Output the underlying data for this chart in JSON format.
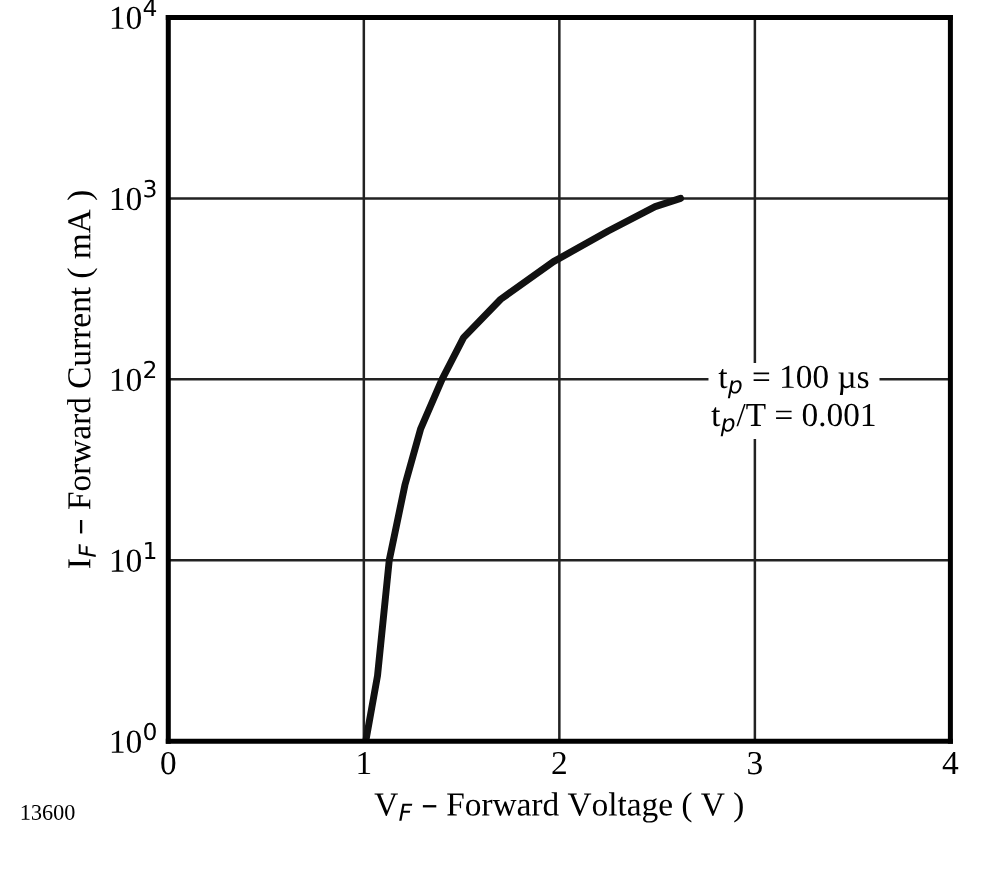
{
  "chart_data": {
    "type": "line",
    "xlabel": "V$_{F}$ – Forward Voltage ( V )",
    "ylabel": "I$_{F}$ – Forward Current ( mA )",
    "x": [
      1.01,
      1.07,
      1.13,
      1.21,
      1.29,
      1.4,
      1.51,
      1.7,
      1.97,
      2.25,
      2.49,
      2.62
    ],
    "series": [
      {
        "color": "#111111",
        "values": [
          1,
          2.3,
          10,
          26,
          53,
          100,
          170,
          277,
          447,
          660,
          900,
          1000
        ]
      }
    ],
    "log": "y",
    "xlim": [
      0,
      4
    ],
    "xticks": [
      0,
      1,
      2,
      3,
      4
    ],
    "ylim": [
      1,
      10000
    ],
    "yticks": [
      {
        "value": 1,
        "label": "10$^{0}$"
      },
      {
        "value": 10,
        "label": "10$^{1}$"
      },
      {
        "value": 100,
        "label": "10$^{2}$"
      },
      {
        "value": 1000,
        "label": "10$^{3}$"
      },
      {
        "value": 10000,
        "label": "10$^{4}$"
      }
    ],
    "grid": true,
    "line_style": "solid",
    "marker": "none",
    "legend": false,
    "annotations": [
      "t$_{p}$ = 100 µs\nt$_{p}$/T = 0.001",
      "13600"
    ]
  }
}
